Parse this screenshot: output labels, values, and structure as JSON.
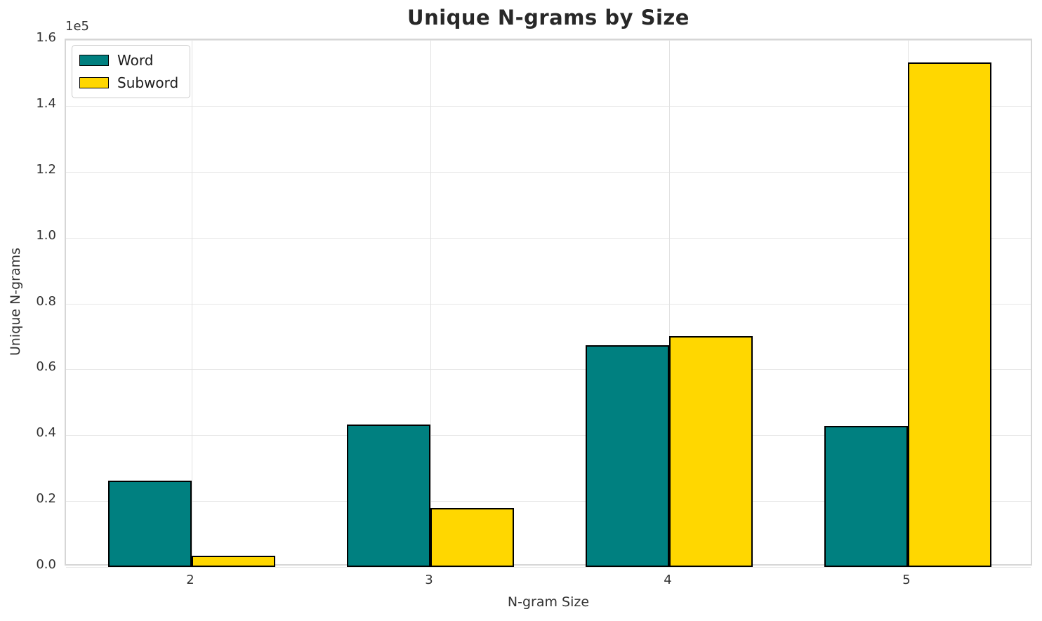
{
  "chart_data": {
    "type": "bar",
    "title": "Unique N-grams by Size",
    "xlabel": "N-gram Size",
    "ylabel": "Unique N-grams",
    "y_offset_label": "1e5",
    "categories": [
      "2",
      "3",
      "4",
      "5"
    ],
    "series": [
      {
        "name": "Word",
        "color": "#008080",
        "values": [
          26300,
          43200,
          67400,
          42900
        ]
      },
      {
        "name": "Subword",
        "color": "#FFD700",
        "values": [
          3400,
          17900,
          70000,
          153200
        ]
      }
    ],
    "ylim": [
      0,
      160000
    ],
    "ytick_values": [
      0,
      20000,
      40000,
      60000,
      80000,
      100000,
      120000,
      140000,
      160000
    ],
    "ytick_labels": [
      "0.0",
      "0.2",
      "0.4",
      "0.6",
      "0.8",
      "1.0",
      "1.2",
      "1.4",
      "1.6"
    ],
    "bar_edge_color": "#000000",
    "bar_width_fraction": 0.35,
    "grid": true,
    "legend_position": "upper left"
  }
}
